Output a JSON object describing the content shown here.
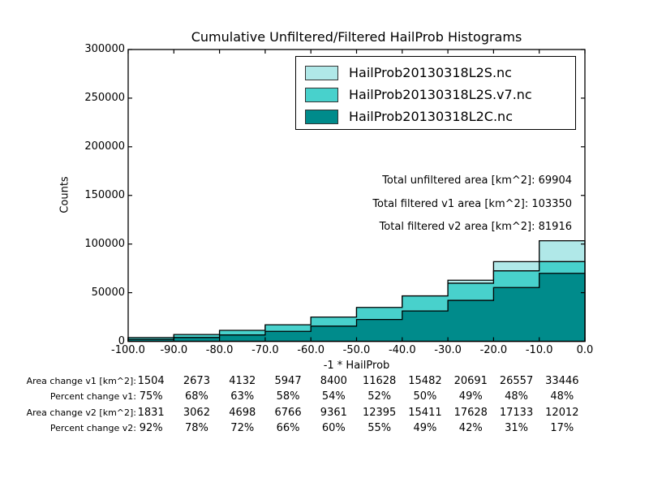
{
  "figure": {
    "title": "Cumulative Unfiltered/Filtered HailProb Histograms",
    "xlabel": "-1 * HailProb",
    "ylabel": "Counts"
  },
  "chart_data": {
    "type": "bar",
    "subtype": "cumulative-filled-step-histogram",
    "title": "Cumulative Unfiltered/Filtered HailProb Histograms",
    "xlabel": "-1 * HailProb",
    "ylabel": "Counts",
    "xlim": [
      -100,
      0
    ],
    "ylim": [
      0,
      300000
    ],
    "grid": false,
    "legend_position": "upper center",
    "bin_edges": [
      -100,
      -90,
      -80,
      -70,
      -60,
      -50,
      -40,
      -30,
      -20,
      -10,
      0
    ],
    "x_tick_labels": [
      "-100.0",
      "-90.0",
      "-80.0",
      "-70.0",
      "-60.0",
      "-50.0",
      "-40.0",
      "-30.0",
      "-20.0",
      "-10.0",
      "0.0"
    ],
    "y_ticks": [
      0,
      50000,
      100000,
      150000,
      200000,
      250000,
      300000
    ],
    "y_tick_labels": [
      "0",
      "50000",
      "100000",
      "150000",
      "200000",
      "250000",
      "300000"
    ],
    "series": [
      {
        "name": "HailProb20130318L2S.nc",
        "color": "#b0e8e8",
        "values": [
          3504,
          6603,
          10672,
          16197,
          23980,
          34078,
          46682,
          62791,
          81857,
          103350
        ]
      },
      {
        "name": "HailProb20130318L2S.v7.nc",
        "color": "#48d1cc",
        "values": [
          3831,
          6992,
          11238,
          17016,
          24941,
          34845,
          46611,
          59728,
          72433,
          81916
        ]
      },
      {
        "name": "HailProb20130318L2C.nc",
        "color": "#008b8b",
        "values": [
          2000,
          3930,
          6540,
          10250,
          15580,
          22450,
          31200,
          42100,
          55300,
          69904
        ]
      }
    ]
  },
  "annotations": [
    "Total unfiltered area [km^2]: 69904",
    "Total filtered v1 area [km^2]: 103350",
    "Total filtered v2 area [km^2]: 81916"
  ],
  "table": {
    "rows": [
      {
        "label": "Area change v1 [km^2]:",
        "values": [
          "1504",
          "2673",
          "4132",
          "5947",
          "8400",
          "11628",
          "15482",
          "20691",
          "26557",
          "33446"
        ]
      },
      {
        "label": "Percent change v1:",
        "values": [
          "75%",
          "68%",
          "63%",
          "58%",
          "54%",
          "52%",
          "50%",
          "49%",
          "48%",
          "48%"
        ]
      },
      {
        "label": "Area change v2 [km^2]:",
        "values": [
          "1831",
          "3062",
          "4698",
          "6766",
          "9361",
          "12395",
          "15411",
          "17628",
          "17133",
          "12012"
        ]
      },
      {
        "label": "Percent change v2:",
        "values": [
          "92%",
          "78%",
          "72%",
          "66%",
          "60%",
          "55%",
          "49%",
          "42%",
          "31%",
          "17%"
        ]
      }
    ]
  },
  "colors": {
    "background": "#ffffff",
    "axes": "#000000"
  }
}
